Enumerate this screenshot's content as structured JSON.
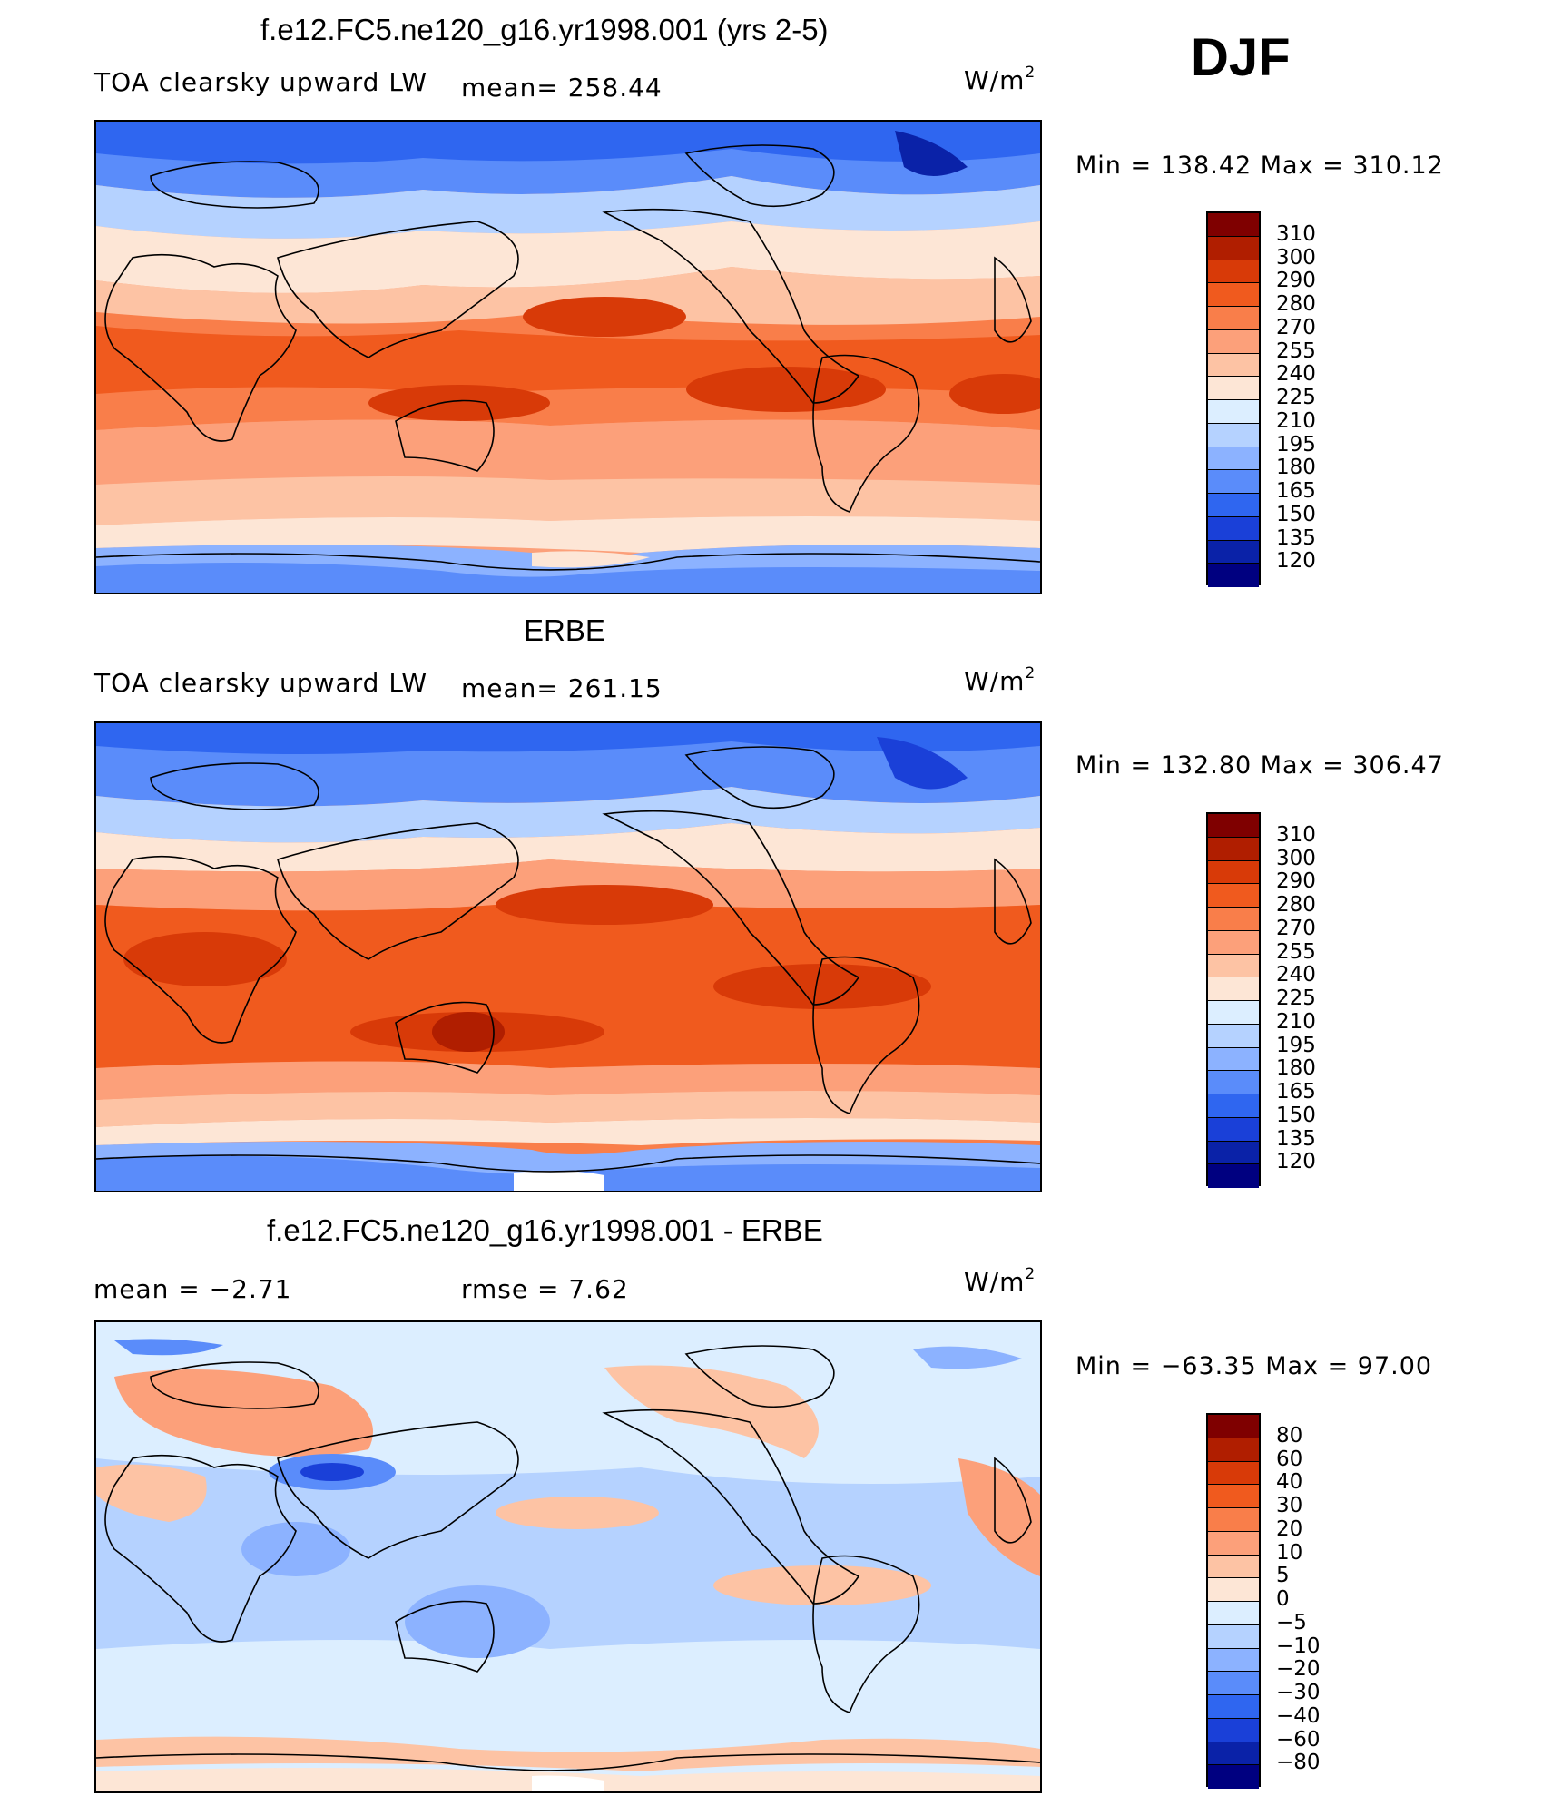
{
  "season": "DJF",
  "panels": [
    {
      "title": "f.e12.FC5.ne120_g16.yr1998.001 (yrs 2-5)",
      "variable": "TOA clearsky upward LW",
      "stat_text": "mean= 258.44",
      "units_base": "W/m",
      "units_exp": "2",
      "minmax": "Min = 138.42 Max = 310.12",
      "map_name": "model-map",
      "map_label": "f.e12.FC5.ne120_g16.yr1998.001 DJF TOA clearsky upward LW map"
    },
    {
      "title": "ERBE",
      "variable": "TOA clearsky upward LW",
      "stat_text": "mean= 261.15",
      "units_base": "W/m",
      "units_exp": "2",
      "minmax": "Min = 132.80 Max = 306.47",
      "map_name": "observation-map",
      "map_label": "ERBE DJF TOA clearsky upward LW map"
    },
    {
      "title": "f.e12.FC5.ne120_g16.yr1998.001 - ERBE",
      "mean_text": "mean =    −2.71",
      "rmse_text": "rmse =    7.62",
      "units_base": "W/m",
      "units_exp": "2",
      "minmax": "Min = −63.35 Max =  97.00",
      "map_name": "difference-map",
      "map_label": "Model minus ERBE difference map"
    }
  ],
  "colorbar_main": {
    "labels": [
      "310",
      "300",
      "290",
      "280",
      "270",
      "255",
      "240",
      "225",
      "210",
      "195",
      "180",
      "165",
      "150",
      "135",
      "120"
    ],
    "colors": [
      "#7f0000",
      "#b01e00",
      "#d83a08",
      "#f05a1e",
      "#f97e4a",
      "#fca07a",
      "#fdc3a4",
      "#fde6d6",
      "#dceeff",
      "#b5d2ff",
      "#8cb2ff",
      "#5a8cfa",
      "#2f66f0",
      "#1a40d8",
      "#0a22a8",
      "#000080"
    ]
  },
  "colorbar_diff": {
    "labels": [
      "80",
      "60",
      "40",
      "30",
      "20",
      "10",
      "5",
      "0",
      "−5",
      "−10",
      "−20",
      "−30",
      "−40",
      "−60",
      "−80"
    ],
    "colors": [
      "#7f0000",
      "#b01e00",
      "#d83a08",
      "#f05a1e",
      "#f97e4a",
      "#fca07a",
      "#fdc3a4",
      "#fde6d6",
      "#dceeff",
      "#b5d2ff",
      "#8cb2ff",
      "#5a8cfa",
      "#2f66f0",
      "#1a40d8",
      "#0a22a8",
      "#000080"
    ]
  }
}
